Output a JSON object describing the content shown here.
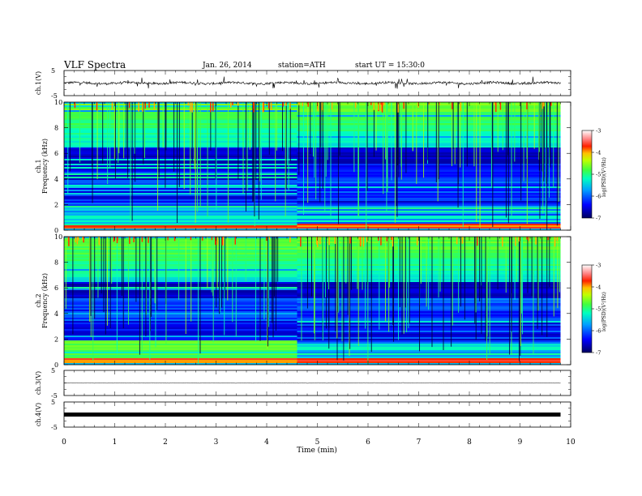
{
  "header": {
    "title": "VLF  Spectra",
    "date": "Jan. 26, 2014",
    "station": "station=ATH",
    "start": "start  UT  =   15:30:0"
  },
  "chart_data": [
    {
      "type": "line",
      "ylabel": "ch.1(V)",
      "ylim": [
        -5,
        5
      ],
      "yticks": [
        "5",
        "-5"
      ],
      "description_values": {
        "baseline_V": 0,
        "noise_amplitude_V": 1,
        "spikes": true
      }
    },
    {
      "type": "heatmap",
      "ylabel": "ch.1\nFrequency  (kHz)",
      "ylim": [
        0,
        10
      ],
      "yticks": [
        "0",
        "2",
        "4",
        "6",
        "8",
        "10"
      ],
      "colorbar_label": "log(PSD)(V²/Hz)",
      "colorbar_range": [
        -7,
        -3
      ],
      "colorbar_ticks": [
        "-3",
        "-4",
        "-5",
        "-6",
        "-7"
      ]
    },
    {
      "type": "heatmap",
      "ylabel": "ch.2\nFrequency  (kHz)",
      "ylim": [
        0,
        10
      ],
      "yticks": [
        "0",
        "2",
        "4",
        "6",
        "8",
        "10"
      ],
      "colorbar_label": "log(PSD)(V²/Hz)",
      "colorbar_range": [
        -7,
        -3
      ],
      "colorbar_ticks": [
        "-3",
        "-4",
        "-5",
        "-6",
        "-7"
      ]
    },
    {
      "type": "line",
      "ylabel": "ch.3(V)",
      "ylim": [
        -5,
        5
      ],
      "yticks": [
        "5",
        "-5"
      ]
    },
    {
      "type": "line",
      "ylabel": "ch.4(V)",
      "ylim": [
        -5,
        5
      ],
      "yticks": [
        "5",
        "-5"
      ]
    }
  ],
  "xaxis": {
    "label": "Time  (min)",
    "range": [
      0,
      10
    ],
    "ticks": [
      "0",
      "1",
      "2",
      "3",
      "4",
      "5",
      "6",
      "7",
      "8",
      "9",
      "10"
    ],
    "data_end_min": 9.8
  },
  "colors": {
    "colormap": [
      "#000080",
      "#0000ff",
      "#00a0ff",
      "#00ffff",
      "#00ff80",
      "#80ff00",
      "#ffff00",
      "#ff8000",
      "#ff0000",
      "#ffffff"
    ]
  }
}
